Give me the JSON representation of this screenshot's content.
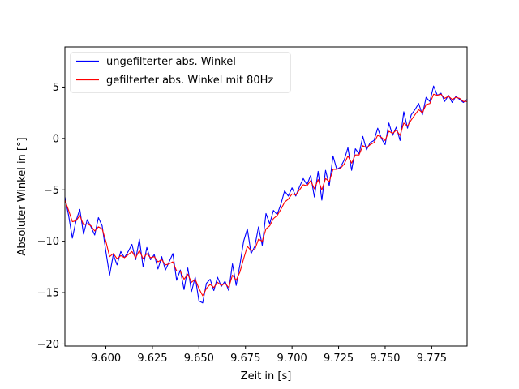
{
  "chart_data": {
    "type": "line",
    "xlabel": "Zeit in [s]",
    "ylabel": "Absoluter Winkel in [°]",
    "xlim": [
      9.578,
      9.794
    ],
    "ylim": [
      -20.2,
      8.9
    ],
    "xticks": [
      9.6,
      9.625,
      9.65,
      9.675,
      9.7,
      9.725,
      9.75,
      9.775
    ],
    "xtick_labels": [
      "9.600",
      "9.625",
      "9.650",
      "9.675",
      "9.700",
      "9.725",
      "9.750",
      "9.775"
    ],
    "yticks": [
      -20,
      -15,
      -10,
      -5,
      0,
      5
    ],
    "ytick_labels": [
      "−20",
      "−15",
      "−10",
      "−5",
      "0",
      "5"
    ],
    "grid": false,
    "legend_position": "top-left",
    "series": [
      {
        "name": "ungefilterter abs. Winkel",
        "color": "#0000ff",
        "points": [
          [
            9.578,
            -5.7
          ],
          [
            9.58,
            -7.5
          ],
          [
            9.582,
            -9.7
          ],
          [
            9.584,
            -8.0
          ],
          [
            9.586,
            -6.9
          ],
          [
            9.588,
            -9.3
          ],
          [
            9.59,
            -7.9
          ],
          [
            9.592,
            -8.6
          ],
          [
            9.594,
            -9.4
          ],
          [
            9.596,
            -7.7
          ],
          [
            9.598,
            -8.5
          ],
          [
            9.6,
            -11.0
          ],
          [
            9.602,
            -13.3
          ],
          [
            9.604,
            -11.3
          ],
          [
            9.606,
            -12.3
          ],
          [
            9.608,
            -11.0
          ],
          [
            9.61,
            -11.6
          ],
          [
            9.612,
            -11.0
          ],
          [
            9.614,
            -10.3
          ],
          [
            9.616,
            -11.8
          ],
          [
            9.618,
            -9.8
          ],
          [
            9.62,
            -12.5
          ],
          [
            9.622,
            -10.6
          ],
          [
            9.624,
            -11.8
          ],
          [
            9.626,
            -11.3
          ],
          [
            9.628,
            -12.7
          ],
          [
            9.63,
            -11.5
          ],
          [
            9.632,
            -12.8
          ],
          [
            9.634,
            -12.0
          ],
          [
            9.636,
            -11.2
          ],
          [
            9.638,
            -13.8
          ],
          [
            9.64,
            -12.8
          ],
          [
            9.642,
            -14.7
          ],
          [
            9.644,
            -12.6
          ],
          [
            9.646,
            -14.9
          ],
          [
            9.648,
            -13.5
          ],
          [
            9.65,
            -15.8
          ],
          [
            9.652,
            -16.0
          ],
          [
            9.654,
            -14.1
          ],
          [
            9.656,
            -13.7
          ],
          [
            9.658,
            -14.8
          ],
          [
            9.66,
            -13.5
          ],
          [
            9.662,
            -14.4
          ],
          [
            9.664,
            -13.9
          ],
          [
            9.666,
            -14.8
          ],
          [
            9.668,
            -12.2
          ],
          [
            9.67,
            -14.3
          ],
          [
            9.672,
            -12.3
          ],
          [
            9.674,
            -10.0
          ],
          [
            9.676,
            -8.8
          ],
          [
            9.678,
            -11.2
          ],
          [
            9.68,
            -10.5
          ],
          [
            9.682,
            -8.6
          ],
          [
            9.684,
            -10.4
          ],
          [
            9.686,
            -7.3
          ],
          [
            9.688,
            -8.3
          ],
          [
            9.69,
            -7.0
          ],
          [
            9.692,
            -7.4
          ],
          [
            9.694,
            -6.4
          ],
          [
            9.696,
            -5.1
          ],
          [
            9.698,
            -5.6
          ],
          [
            9.7,
            -4.8
          ],
          [
            9.702,
            -5.6
          ],
          [
            9.704,
            -4.7
          ],
          [
            9.706,
            -3.9
          ],
          [
            9.708,
            -4.5
          ],
          [
            9.71,
            -3.6
          ],
          [
            9.712,
            -5.7
          ],
          [
            9.714,
            -3.2
          ],
          [
            9.716,
            -6.0
          ],
          [
            9.718,
            -3.1
          ],
          [
            9.72,
            -4.6
          ],
          [
            9.722,
            -1.7
          ],
          [
            9.724,
            -3.0
          ],
          [
            9.726,
            -2.8
          ],
          [
            9.728,
            -2.1
          ],
          [
            9.73,
            -0.9
          ],
          [
            9.732,
            -3.1
          ],
          [
            9.734,
            -1.0
          ],
          [
            9.736,
            -1.5
          ],
          [
            9.738,
            0.2
          ],
          [
            9.74,
            -1.1
          ],
          [
            9.742,
            -0.4
          ],
          [
            9.744,
            -0.2
          ],
          [
            9.746,
            1.0
          ],
          [
            9.748,
            0.0
          ],
          [
            9.75,
            -0.6
          ],
          [
            9.752,
            1.5
          ],
          [
            9.754,
            0.3
          ],
          [
            9.756,
            1.1
          ],
          [
            9.758,
            -0.2
          ],
          [
            9.76,
            2.6
          ],
          [
            9.762,
            1.0
          ],
          [
            9.764,
            2.3
          ],
          [
            9.766,
            2.8
          ],
          [
            9.768,
            3.4
          ],
          [
            9.77,
            2.3
          ],
          [
            9.772,
            4.0
          ],
          [
            9.774,
            3.6
          ],
          [
            9.776,
            5.1
          ],
          [
            9.778,
            4.2
          ],
          [
            9.78,
            4.4
          ],
          [
            9.782,
            3.6
          ],
          [
            9.784,
            4.2
          ],
          [
            9.786,
            3.5
          ],
          [
            9.788,
            4.1
          ],
          [
            9.79,
            3.8
          ],
          [
            9.792,
            3.5
          ],
          [
            9.794,
            3.8
          ]
        ]
      },
      {
        "name": "gefilterter abs. Winkel mit 80Hz",
        "color": "#ff0000",
        "points": [
          [
            9.578,
            -6.0
          ],
          [
            9.58,
            -7.0
          ],
          [
            9.582,
            -8.1
          ],
          [
            9.584,
            -8.0
          ],
          [
            9.586,
            -7.5
          ],
          [
            9.588,
            -8.4
          ],
          [
            9.59,
            -8.3
          ],
          [
            9.592,
            -8.5
          ],
          [
            9.594,
            -9.0
          ],
          [
            9.596,
            -8.6
          ],
          [
            9.598,
            -8.8
          ],
          [
            9.6,
            -10.0
          ],
          [
            9.602,
            -11.5
          ],
          [
            9.604,
            -11.2
          ],
          [
            9.606,
            -11.7
          ],
          [
            9.608,
            -11.4
          ],
          [
            9.61,
            -11.6
          ],
          [
            9.612,
            -11.3
          ],
          [
            9.614,
            -11.0
          ],
          [
            9.616,
            -11.6
          ],
          [
            9.618,
            -10.9
          ],
          [
            9.62,
            -11.7
          ],
          [
            9.622,
            -11.2
          ],
          [
            9.624,
            -11.6
          ],
          [
            9.626,
            -11.5
          ],
          [
            9.628,
            -12.0
          ],
          [
            9.63,
            -11.8
          ],
          [
            9.632,
            -12.3
          ],
          [
            9.634,
            -12.2
          ],
          [
            9.636,
            -12.0
          ],
          [
            9.638,
            -12.9
          ],
          [
            9.64,
            -12.9
          ],
          [
            9.642,
            -13.7
          ],
          [
            9.644,
            -13.2
          ],
          [
            9.646,
            -14.0
          ],
          [
            9.648,
            -13.7
          ],
          [
            9.65,
            -14.6
          ],
          [
            9.652,
            -15.3
          ],
          [
            9.654,
            -14.6
          ],
          [
            9.656,
            -14.2
          ],
          [
            9.658,
            -14.5
          ],
          [
            9.66,
            -14.0
          ],
          [
            9.662,
            -14.3
          ],
          [
            9.664,
            -14.1
          ],
          [
            9.666,
            -14.5
          ],
          [
            9.668,
            -13.3
          ],
          [
            9.67,
            -13.8
          ],
          [
            9.672,
            -13.0
          ],
          [
            9.674,
            -11.7
          ],
          [
            9.676,
            -10.5
          ],
          [
            9.678,
            -10.9
          ],
          [
            9.68,
            -10.8
          ],
          [
            9.682,
            -9.8
          ],
          [
            9.684,
            -10.0
          ],
          [
            9.686,
            -8.8
          ],
          [
            9.688,
            -8.5
          ],
          [
            9.69,
            -7.8
          ],
          [
            9.692,
            -7.5
          ],
          [
            9.694,
            -6.9
          ],
          [
            9.696,
            -6.2
          ],
          [
            9.698,
            -5.9
          ],
          [
            9.7,
            -5.4
          ],
          [
            9.702,
            -5.5
          ],
          [
            9.704,
            -5.0
          ],
          [
            9.706,
            -4.5
          ],
          [
            9.708,
            -4.6
          ],
          [
            9.71,
            -4.1
          ],
          [
            9.712,
            -4.9
          ],
          [
            9.714,
            -4.0
          ],
          [
            9.716,
            -5.0
          ],
          [
            9.718,
            -3.9
          ],
          [
            9.72,
            -4.2
          ],
          [
            9.722,
            -3.0
          ],
          [
            9.724,
            -3.0
          ],
          [
            9.726,
            -2.9
          ],
          [
            9.728,
            -2.5
          ],
          [
            9.73,
            -1.7
          ],
          [
            9.732,
            -2.4
          ],
          [
            9.734,
            -1.6
          ],
          [
            9.736,
            -1.6
          ],
          [
            9.738,
            -0.7
          ],
          [
            9.74,
            -0.9
          ],
          [
            9.742,
            -0.6
          ],
          [
            9.744,
            -0.4
          ],
          [
            9.746,
            0.3
          ],
          [
            9.748,
            0.1
          ],
          [
            9.75,
            -0.2
          ],
          [
            9.752,
            0.7
          ],
          [
            9.754,
            0.5
          ],
          [
            9.756,
            0.8
          ],
          [
            9.758,
            0.3
          ],
          [
            9.76,
            1.5
          ],
          [
            9.762,
            1.2
          ],
          [
            9.764,
            1.8
          ],
          [
            9.766,
            2.3
          ],
          [
            9.768,
            2.8
          ],
          [
            9.77,
            2.5
          ],
          [
            9.772,
            3.3
          ],
          [
            9.774,
            3.4
          ],
          [
            9.776,
            4.3
          ],
          [
            9.778,
            4.2
          ],
          [
            9.78,
            4.3
          ],
          [
            9.782,
            3.9
          ],
          [
            9.784,
            4.1
          ],
          [
            9.786,
            3.8
          ],
          [
            9.788,
            4.0
          ],
          [
            9.79,
            3.9
          ],
          [
            9.792,
            3.6
          ],
          [
            9.794,
            3.6
          ]
        ]
      }
    ]
  }
}
